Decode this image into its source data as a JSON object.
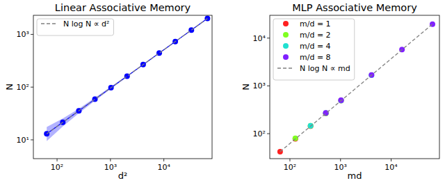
{
  "chart_data": [
    {
      "type": "scatter",
      "title": "Linear Associative Memory",
      "x_label": "d²",
      "y_label": "N",
      "log": true,
      "xlim": [
        36,
        80000
      ],
      "ylim": [
        4.4,
        2300
      ],
      "xticks": [
        {
          "value": 100,
          "label": "10²"
        },
        {
          "value": 1000,
          "label": "10³"
        },
        {
          "value": 10000,
          "label": "10⁴"
        }
      ],
      "yticks": [
        {
          "value": 10,
          "label": "10¹"
        },
        {
          "value": 100,
          "label": "10²"
        },
        {
          "value": 1000,
          "label": "10³"
        }
      ],
      "legend": "upper left",
      "series": [
        {
          "color": "#0000ff",
          "type": "line",
          "marker": "circle",
          "line_style": "solid",
          "x": [
            64,
            128,
            256,
            512,
            1024,
            2048,
            4096,
            8192,
            16384,
            32768,
            65536
          ],
          "values": [
            13,
            21.5,
            35.6,
            58.9,
            97.5,
            161,
            267,
            442,
            731,
            1210,
            2000
          ],
          "lower": [
            9.5,
            18,
            32,
            55,
            93,
            156,
            262,
            436,
            724,
            1200,
            1985
          ],
          "upper": [
            17.5,
            25.5,
            39,
            63,
            102,
            166,
            272,
            448,
            738,
            1220,
            2015
          ]
        },
        {
          "name": "N log N ∝ d²",
          "color": "#808080",
          "type": "line",
          "line_style": "dashed",
          "x": [
            64,
            65536
          ],
          "values": [
            13,
            2000
          ]
        }
      ]
    },
    {
      "type": "scatter",
      "title": "MLP Associative Memory",
      "x_label": "md",
      "y_label": "N",
      "log": true,
      "xlim": [
        40,
        90000
      ],
      "ylim": [
        30,
        30000
      ],
      "xticks": [
        {
          "value": 100,
          "label": "10²"
        },
        {
          "value": 1000,
          "label": "10³"
        },
        {
          "value": 10000,
          "label": "10⁴"
        }
      ],
      "yticks": [
        {
          "value": 100,
          "label": "10²"
        },
        {
          "value": 1000,
          "label": "10³"
        },
        {
          "value": 10000,
          "label": "10⁴"
        }
      ],
      "legend": "upper left",
      "series": [
        {
          "name": "m/d = 1",
          "color": "#ff2020",
          "type": "scatter",
          "marker": "circle",
          "line_style": "solid",
          "x": [
            64,
            128,
            256,
            512,
            1024
          ],
          "values": [
            42,
            78,
            144,
            266,
            492
          ]
        },
        {
          "name": "m/d = 2",
          "color": "#80ff20",
          "type": "scatter",
          "marker": "circle",
          "line_style": "solid",
          "x": [
            128,
            256,
            512
          ],
          "values": [
            80,
            146,
            268
          ]
        },
        {
          "name": "m/d = 4",
          "color": "#20e0d0",
          "type": "scatter",
          "marker": "circle",
          "line_style": "solid",
          "x": [
            256,
            512,
            1024,
            4096
          ],
          "values": [
            146,
            270,
            495,
            1680
          ]
        },
        {
          "name": "m/d = 8",
          "color": "#8020ff",
          "type": "scatter",
          "marker": "circle",
          "line_style": "solid",
          "x": [
            512,
            1024,
            4096,
            16384,
            65536
          ],
          "values": [
            272,
            500,
            1690,
            5740,
            19600
          ]
        },
        {
          "name": "N log N ∝ md",
          "color": "#808080",
          "type": "line",
          "line_style": "dashed",
          "x": [
            64,
            65536
          ],
          "values": [
            42,
            19600
          ]
        }
      ]
    }
  ]
}
